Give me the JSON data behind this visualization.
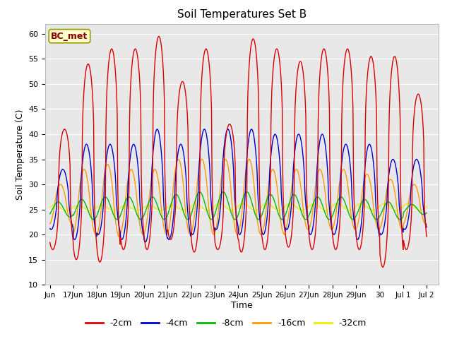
{
  "title": "Soil Temperatures Set B",
  "xlabel": "Time",
  "ylabel": "Soil Temperature (C)",
  "ylim": [
    10,
    62
  ],
  "background_color": "#e8e8e8",
  "fig_background": "#ffffff",
  "grid_color": "#ffffff",
  "series_colors": {
    "-2cm": "#dd0000",
    "-4cm": "#0000cc",
    "-8cm": "#00bb00",
    "-16cm": "#ff9900",
    "-32cm": "#eeee00"
  },
  "annotation_text": "BC_met",
  "annotation_bg": "#ffffcc",
  "annotation_border": "#999900",
  "tick_labels": [
    "Jun",
    "17Jun",
    "18Jun",
    "19Jun",
    "20Jun",
    "21Jun",
    "22Jun",
    "23Jun",
    "24Jun",
    "25Jun",
    "26Jun",
    "27Jun",
    "28Jun",
    "29Jun",
    "30",
    "Jul 1",
    "Jul 2"
  ],
  "tick_positions": [
    0,
    1,
    2,
    3,
    4,
    5,
    6,
    7,
    8,
    9,
    10,
    11,
    12,
    13,
    14,
    15,
    16
  ],
  "yticks": [
    10,
    15,
    20,
    25,
    30,
    35,
    40,
    45,
    50,
    55,
    60
  ],
  "n_points_per_day": 48,
  "n_days": 16,
  "peak_2cm": [
    41,
    54,
    57,
    57,
    59.5,
    50.5,
    57,
    42,
    59,
    57,
    54.5,
    57,
    57,
    55.5,
    55.5,
    48
  ],
  "min_2cm": [
    17,
    15,
    14.5,
    17,
    17,
    19,
    16.5,
    17,
    16.5,
    17,
    17.5,
    17,
    17,
    17,
    13.5,
    17
  ],
  "phase_2cm": 0.62,
  "peak_4cm": [
    33,
    38,
    38,
    38,
    41,
    38,
    41,
    41,
    41,
    40,
    40,
    40,
    38,
    38,
    35,
    35
  ],
  "min_4cm": [
    21,
    19,
    20,
    19,
    18.5,
    19,
    20,
    21,
    20,
    20,
    21,
    20,
    20,
    19,
    20,
    21
  ],
  "phase_4cm": 0.55,
  "peak_8cm": [
    26.5,
    27,
    27.5,
    27.5,
    27.5,
    28,
    28.5,
    28.5,
    28.5,
    28,
    28,
    27.5,
    27.5,
    27,
    26.5,
    26
  ],
  "min_8cm": [
    23.5,
    23,
    23,
    23,
    23,
    23,
    23,
    23,
    23,
    23,
    23,
    23,
    23,
    23,
    23,
    24
  ],
  "phase_8cm": 0.35,
  "peak_16cm": [
    30,
    33,
    34,
    33,
    33,
    35,
    35,
    35,
    35,
    33,
    33,
    33,
    33,
    32,
    31,
    30
  ],
  "min_16cm": [
    22,
    20,
    19.5,
    20,
    20,
    20,
    20,
    20,
    20,
    20,
    21,
    21,
    21,
    21,
    21,
    22
  ],
  "phase_16cm": 0.45,
  "peak_32cm": [
    25.8,
    25.8,
    25.8,
    25.8,
    25.8,
    25.8,
    26.0,
    26.2,
    26.2,
    26.2,
    26.2,
    26.2,
    26.2,
    26.2,
    26.2,
    26.2
  ],
  "min_32cm": [
    24.8,
    24.8,
    24.8,
    24.8,
    24.8,
    24.8,
    24.8,
    24.8,
    24.8,
    24.8,
    24.8,
    24.8,
    24.8,
    24.8,
    24.8,
    24.8
  ],
  "phase_32cm": 0.2
}
